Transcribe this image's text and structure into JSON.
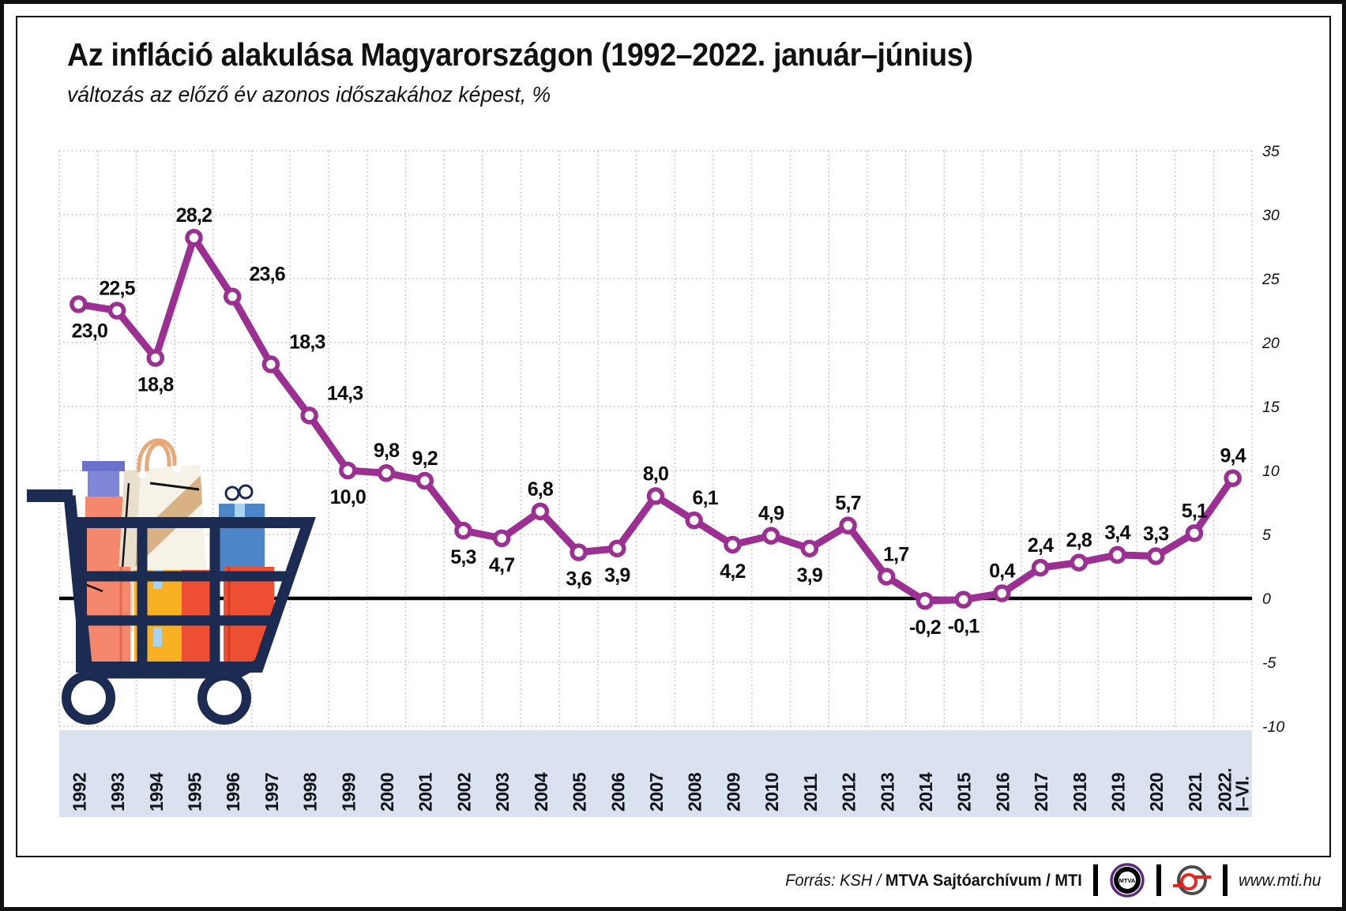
{
  "header": {
    "title": "Az infláció alakulása Magyarországon (1992–2022. január–június)",
    "subtitle": "változás az előző év azonos időszakához képest, %"
  },
  "chart_data": {
    "type": "line",
    "title": "Az infláció alakulása Magyarországon (1992–2022. január–június)",
    "subtitle": "változás az előző év azonos időszakához képest, %",
    "categories": [
      "1992",
      "1993",
      "1994",
      "1995",
      "1996",
      "1997",
      "1998",
      "1999",
      "2000",
      "2001",
      "2002",
      "2003",
      "2004",
      "2005",
      "2006",
      "2007",
      "2008",
      "2009",
      "2010",
      "2011",
      "2012",
      "2013",
      "2014",
      "2015",
      "2016",
      "2017",
      "2018",
      "2019",
      "2020",
      "2021",
      "2022. I–VI."
    ],
    "values": [
      23.0,
      22.5,
      18.8,
      28.2,
      23.6,
      18.3,
      14.3,
      10.0,
      9.8,
      9.2,
      5.3,
      4.7,
      6.8,
      3.6,
      3.9,
      8.0,
      6.1,
      4.2,
      4.9,
      3.9,
      5.7,
      1.7,
      -0.2,
      -0.1,
      0.4,
      2.4,
      2.8,
      3.4,
      3.3,
      5.1,
      9.4
    ],
    "labels": [
      "23,0",
      "22,5",
      "18,8",
      "28,2",
      "23,6",
      "18,3",
      "14,3",
      "10,0",
      "9,8",
      "9,2",
      "5,3",
      "4,7",
      "6,8",
      "3,6",
      "3,9",
      "8,0",
      "6,1",
      "4,2",
      "4,9",
      "3,9",
      "5,7",
      "1,7",
      "-0,2",
      "-0,1",
      "0,4",
      "2,4",
      "2,8",
      "3,4",
      "3,3",
      "5,1",
      "9,4"
    ],
    "label_side": [
      "below",
      "above",
      "below",
      "above",
      "above",
      "above",
      "above",
      "below",
      "above",
      "above",
      "below",
      "below",
      "above",
      "below",
      "below",
      "above",
      "above",
      "below",
      "above",
      "below",
      "above",
      "above",
      "below",
      "below",
      "above",
      "above",
      "above",
      "above",
      "above",
      "above",
      "above"
    ],
    "label_dx": [
      14,
      0,
      0,
      0,
      44,
      46,
      45,
      0,
      0,
      0,
      0,
      0,
      0,
      0,
      0,
      0,
      14,
      0,
      0,
      0,
      0,
      12,
      0,
      0,
      0,
      0,
      0,
      0,
      0,
      0,
      0
    ],
    "xlabel": "",
    "ylabel": "%",
    "ylim": [
      -10,
      35
    ],
    "y_ticks": [
      35,
      30,
      25,
      20,
      15,
      10,
      5,
      0,
      -5,
      -10
    ],
    "grid": true,
    "grid_style": "dotted",
    "axis_label_side": "right",
    "legend": "none"
  },
  "colors": {
    "line": "#9b2f92",
    "marker_fill": "#ffffff",
    "band": "#d9e2ee",
    "grid": "#c6c6ca",
    "zero_line": "#000000",
    "text": "#111111",
    "cart_navy": "#1b2b52",
    "mtva_purple": "#5d2b7e",
    "mti_red": "#e8251f"
  },
  "footer": {
    "source_italic": "Forrás: KSH / ",
    "source_bold": "MTVA Sajtóarchívum / MTI",
    "website": "www.mti.hu",
    "mtva_logo_text": "MTVA"
  }
}
